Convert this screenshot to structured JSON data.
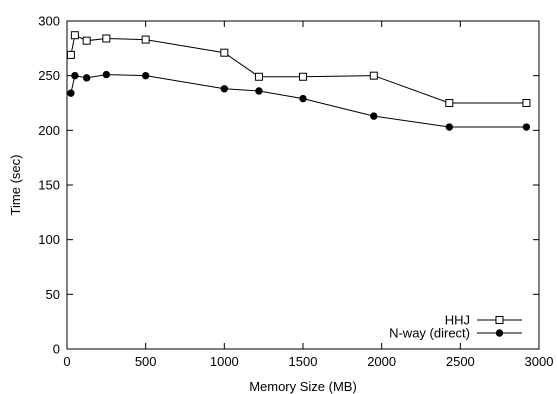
{
  "chart_data": {
    "type": "line",
    "title": "",
    "xlabel": "Memory Size (MB)",
    "ylabel": "Time (sec)",
    "xlim": [
      0,
      3000
    ],
    "ylim": [
      0,
      300
    ],
    "xticks": [
      0,
      500,
      1000,
      1500,
      2000,
      2500,
      3000
    ],
    "yticks": [
      0,
      50,
      100,
      150,
      200,
      250,
      300
    ],
    "grid": false,
    "legend_position": "bottom-right",
    "series": [
      {
        "name": "HHJ",
        "marker": "open-square",
        "color": "#000000",
        "x": [
          25,
          50,
          125,
          250,
          500,
          1000,
          1220,
          1500,
          1950,
          2430,
          2920
        ],
        "y": [
          269,
          287,
          282,
          284,
          283,
          271,
          249,
          249,
          250,
          225,
          225
        ]
      },
      {
        "name": "N-way (direct)",
        "marker": "filled-circle",
        "color": "#000000",
        "x": [
          25,
          50,
          125,
          250,
          500,
          1000,
          1220,
          1500,
          1950,
          2430,
          2920
        ],
        "y": [
          234,
          250,
          248,
          251,
          250,
          238,
          236,
          229,
          213,
          203,
          203
        ]
      }
    ]
  }
}
